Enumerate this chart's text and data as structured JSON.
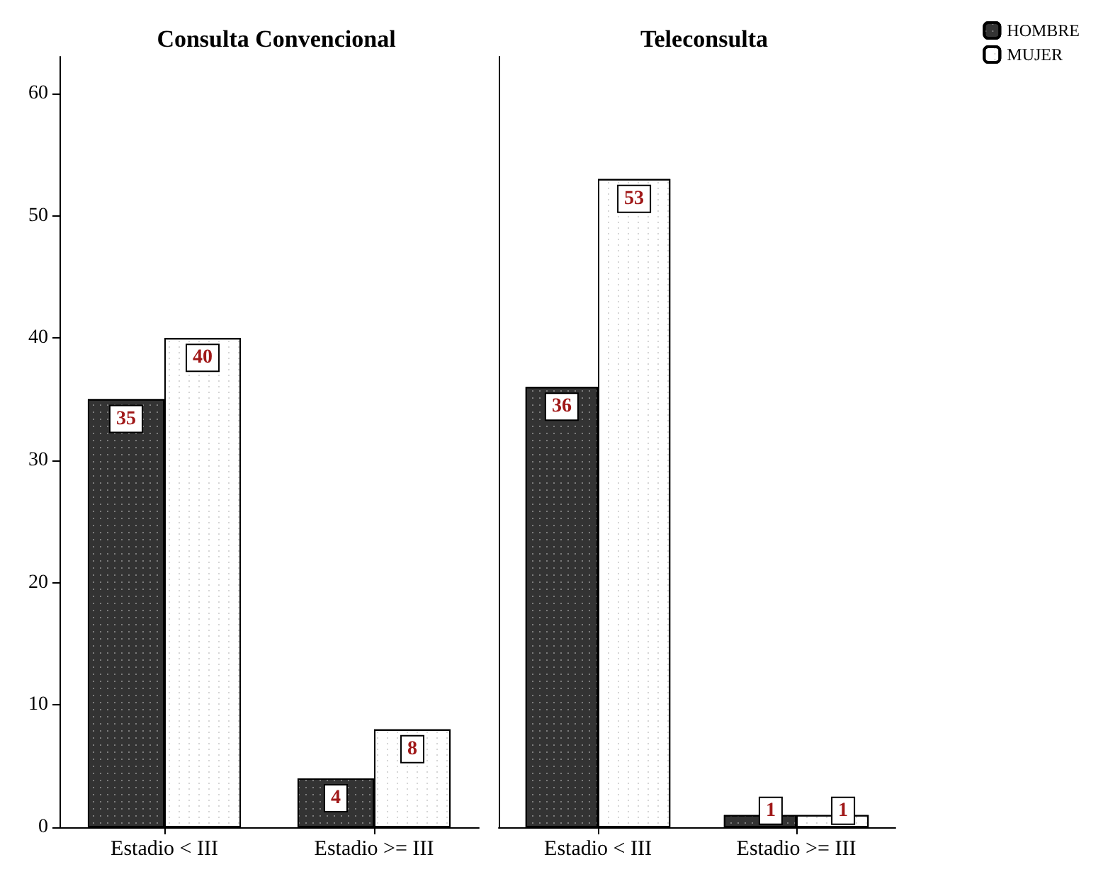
{
  "chart_data": [
    {
      "type": "bar",
      "title": "Consulta Convencional",
      "categories": [
        "Estadio < III",
        "Estadio >= III"
      ],
      "series": [
        {
          "color": "#333333",
          "values": [
            35,
            4
          ]
        },
        {
          "color": "#ffffff",
          "values": [
            40,
            8
          ]
        }
      ],
      "ylim": [
        0,
        63
      ],
      "yticks": [
        0,
        10,
        20,
        30,
        40,
        50,
        60
      ],
      "data_labels": true,
      "grid": false,
      "legend": false
    },
    {
      "type": "bar",
      "title": "Teleconsulta",
      "categories": [
        "Estadio < III",
        "Estadio >= III"
      ],
      "series": [
        {
          "name": "HOMBRE",
          "color": "#333333",
          "values": [
            36,
            1
          ]
        },
        {
          "name": "MUJER",
          "color": "#ffffff",
          "values": [
            53,
            1
          ]
        }
      ],
      "ylim": [
        0,
        63
      ],
      "yticks": [
        0,
        10,
        20,
        30,
        40,
        50,
        60
      ],
      "tick_labels": "x",
      "data_labels": true,
      "grid": false,
      "legend": "top right"
    }
  ]
}
